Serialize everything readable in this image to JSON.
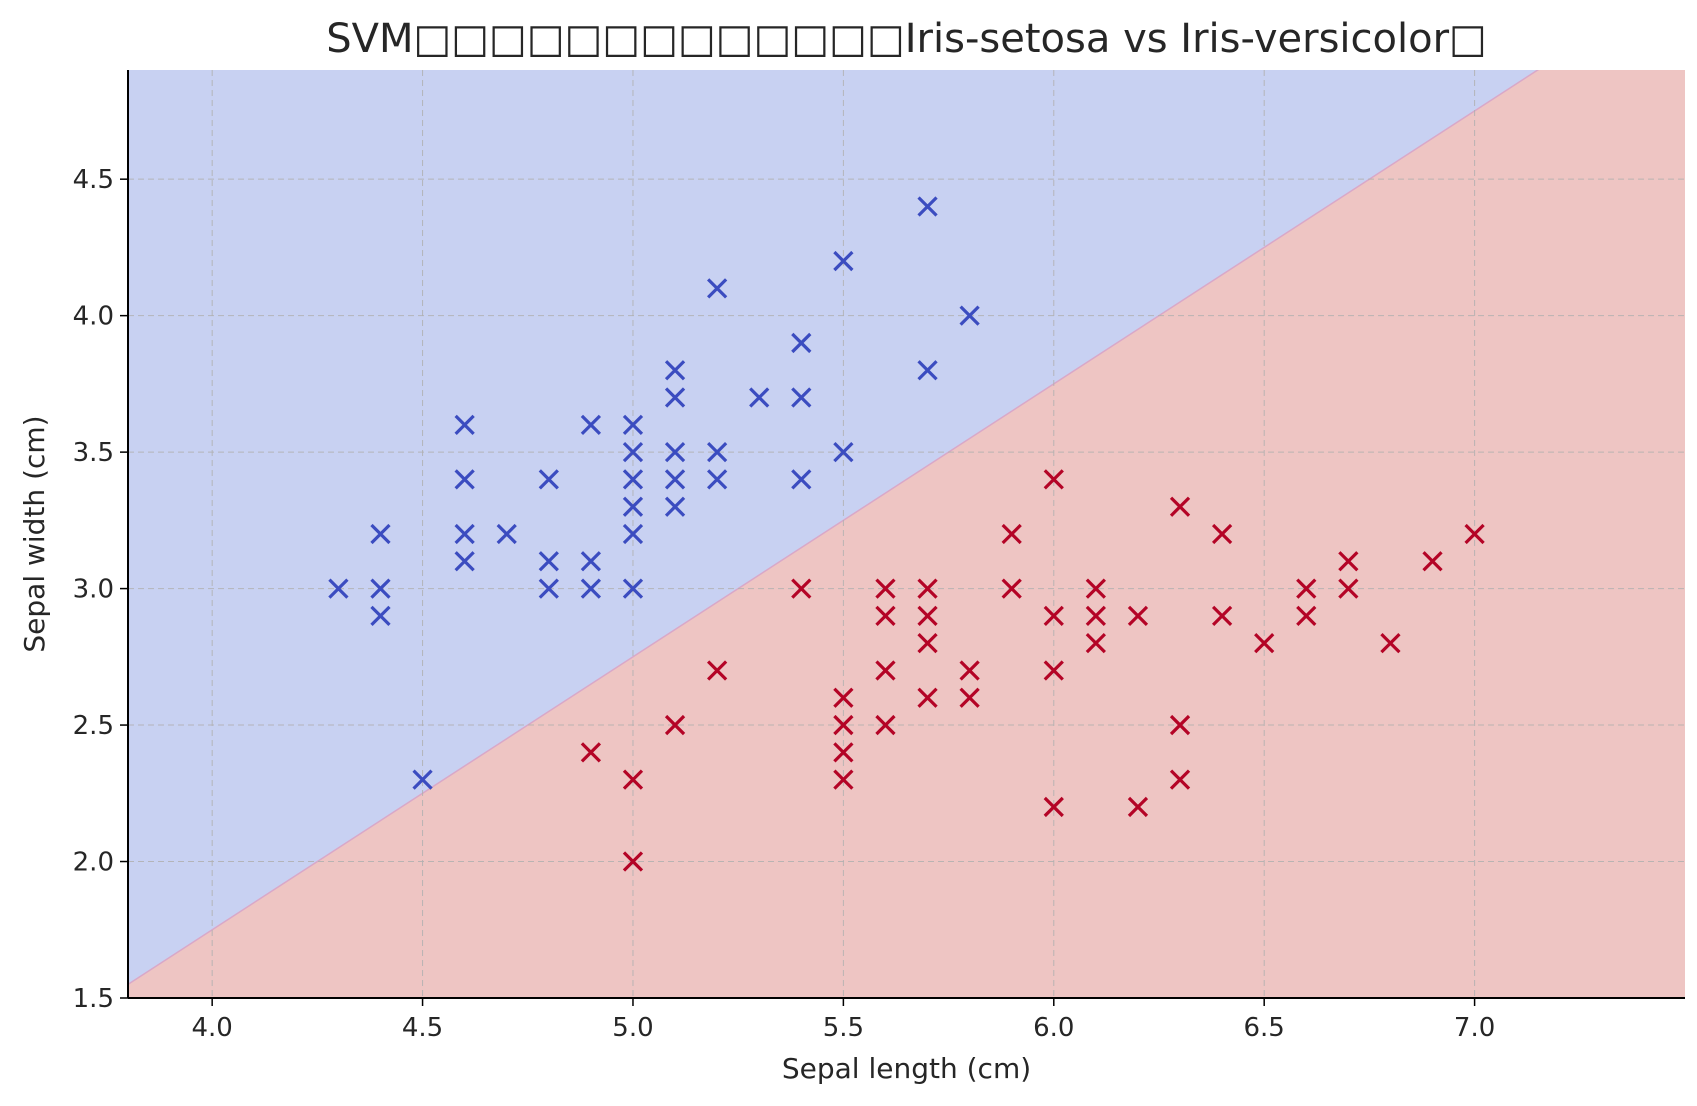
{
  "chart_data": {
    "type": "scatter",
    "title": "SVM□□□□□□□□□□□□□Iris-setosa vs Iris-versicolor□",
    "xlabel": "Sepal length (cm)",
    "ylabel": "Sepal width (cm)",
    "xlim": [
      3.8,
      7.5
    ],
    "ylim": [
      1.5,
      4.9
    ],
    "xticks": [
      "4.0",
      "4.5",
      "5.0",
      "5.5",
      "6.0",
      "6.5",
      "7.0"
    ],
    "yticks": [
      "1.5",
      "2.0",
      "2.5",
      "3.0",
      "3.5",
      "4.0",
      "4.5"
    ],
    "grid": true,
    "marker": "x",
    "decision_boundary": {
      "slope": 1.0,
      "intercept": -2.25
    },
    "regions": [
      {
        "class": "Iris-setosa",
        "side": "upper-left",
        "color": "#c8d1f2"
      },
      {
        "class": "Iris-versicolor",
        "side": "lower-right",
        "color": "#eec5c3"
      }
    ],
    "series": [
      {
        "color": "#3b4cc0",
        "points": [
          [
            4.3,
            3.0
          ],
          [
            4.4,
            3.2
          ],
          [
            4.4,
            3.0
          ],
          [
            4.4,
            2.9
          ],
          [
            4.5,
            2.3
          ],
          [
            4.6,
            3.6
          ],
          [
            4.6,
            3.4
          ],
          [
            4.6,
            3.2
          ],
          [
            4.6,
            3.1
          ],
          [
            4.7,
            3.2
          ],
          [
            4.8,
            3.4
          ],
          [
            4.8,
            3.1
          ],
          [
            4.8,
            3.0
          ],
          [
            4.9,
            3.6
          ],
          [
            4.9,
            3.1
          ],
          [
            4.9,
            3.0
          ],
          [
            5.0,
            3.6
          ],
          [
            5.0,
            3.5
          ],
          [
            5.0,
            3.4
          ],
          [
            5.0,
            3.3
          ],
          [
            5.0,
            3.2
          ],
          [
            5.0,
            3.0
          ],
          [
            5.1,
            3.8
          ],
          [
            5.1,
            3.7
          ],
          [
            5.1,
            3.5
          ],
          [
            5.1,
            3.4
          ],
          [
            5.1,
            3.3
          ],
          [
            5.2,
            4.1
          ],
          [
            5.2,
            3.5
          ],
          [
            5.2,
            3.4
          ],
          [
            5.3,
            3.7
          ],
          [
            5.4,
            3.9
          ],
          [
            5.4,
            3.7
          ],
          [
            5.4,
            3.4
          ],
          [
            5.5,
            4.2
          ],
          [
            5.5,
            3.5
          ],
          [
            5.7,
            4.4
          ],
          [
            5.7,
            3.8
          ],
          [
            5.8,
            4.0
          ]
        ]
      },
      {
        "color": "#b40426",
        "points": [
          [
            4.9,
            2.4
          ],
          [
            5.0,
            2.3
          ],
          [
            5.0,
            2.0
          ],
          [
            5.1,
            2.5
          ],
          [
            5.2,
            2.7
          ],
          [
            5.4,
            3.0
          ],
          [
            5.5,
            2.6
          ],
          [
            5.5,
            2.5
          ],
          [
            5.5,
            2.4
          ],
          [
            5.5,
            2.3
          ],
          [
            5.6,
            3.0
          ],
          [
            5.6,
            2.9
          ],
          [
            5.6,
            2.7
          ],
          [
            5.6,
            2.5
          ],
          [
            5.7,
            3.0
          ],
          [
            5.7,
            2.9
          ],
          [
            5.7,
            2.8
          ],
          [
            5.7,
            2.6
          ],
          [
            5.8,
            2.7
          ],
          [
            5.8,
            2.6
          ],
          [
            5.9,
            3.2
          ],
          [
            5.9,
            3.0
          ],
          [
            6.0,
            3.4
          ],
          [
            6.0,
            2.9
          ],
          [
            6.0,
            2.7
          ],
          [
            6.0,
            2.2
          ],
          [
            6.1,
            3.0
          ],
          [
            6.1,
            2.9
          ],
          [
            6.1,
            2.8
          ],
          [
            6.2,
            2.9
          ],
          [
            6.2,
            2.2
          ],
          [
            6.3,
            3.3
          ],
          [
            6.3,
            2.5
          ],
          [
            6.3,
            2.3
          ],
          [
            6.4,
            3.2
          ],
          [
            6.4,
            2.9
          ],
          [
            6.5,
            2.8
          ],
          [
            6.6,
            3.0
          ],
          [
            6.6,
            2.9
          ],
          [
            6.7,
            3.1
          ],
          [
            6.7,
            3.0
          ],
          [
            6.8,
            2.8
          ],
          [
            6.9,
            3.1
          ],
          [
            7.0,
            3.2
          ]
        ]
      }
    ]
  }
}
